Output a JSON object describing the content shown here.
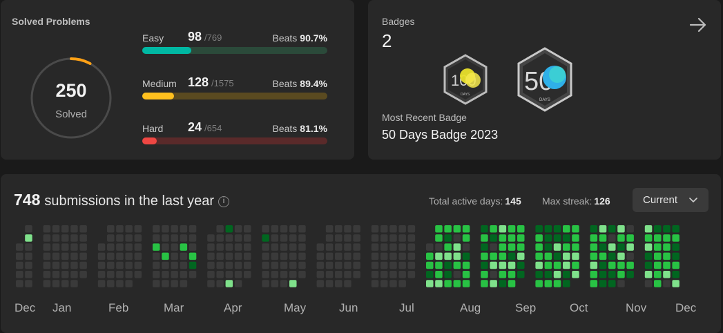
{
  "solved": {
    "title": "Solved Problems",
    "total": "250",
    "total_label": "Solved",
    "difficulties": [
      {
        "name": "Easy",
        "solved": "98",
        "total": "/769",
        "beats_label": "Beats",
        "beats": "90.7%",
        "fraction": 0.127,
        "color": "#00b8a3",
        "track": "#2b4a3a"
      },
      {
        "name": "Medium",
        "solved": "128",
        "total": "/1575",
        "beats_label": "Beats",
        "beats": "89.4%",
        "fraction": 0.081,
        "color": "#ffc01e",
        "track": "#5a4a20"
      },
      {
        "name": "Hard",
        "solved": "24",
        "total": "/654",
        "beats_label": "Beats",
        "beats": "81.1%",
        "fraction": 0.037,
        "color": "#ef4743",
        "track": "#5a2a2a"
      }
    ],
    "ring_fraction": 0.08,
    "ring_color": "#ffa116"
  },
  "badges": {
    "label": "Badges",
    "count": "2",
    "recent_label": "Most Recent Badge",
    "recent_value": "50 Days Badge 2023",
    "badge_small_text": "DAYS",
    "items": [
      {
        "name": "100-days-badge",
        "number": "100"
      },
      {
        "name": "50-days-badge",
        "number": "50"
      }
    ]
  },
  "calendar": {
    "count": "748",
    "label": "submissions in the last year",
    "info_glyph": "i",
    "active_days_label": "Total active days:",
    "active_days": "145",
    "max_streak_label": "Max streak:",
    "max_streak": "126",
    "dropdown_value": "Current",
    "months": [
      "Dec",
      "Jan",
      "Feb",
      "Mar",
      "Apr",
      "May",
      "Jun",
      "Jul",
      "Aug",
      "Sep",
      "Oct",
      "Nov",
      "Dec"
    ],
    "colors": {
      "empty": "#3a3a3a",
      "l1": "#016620",
      "l2": "#28c244",
      "l3": "#7fe18b"
    }
  }
}
